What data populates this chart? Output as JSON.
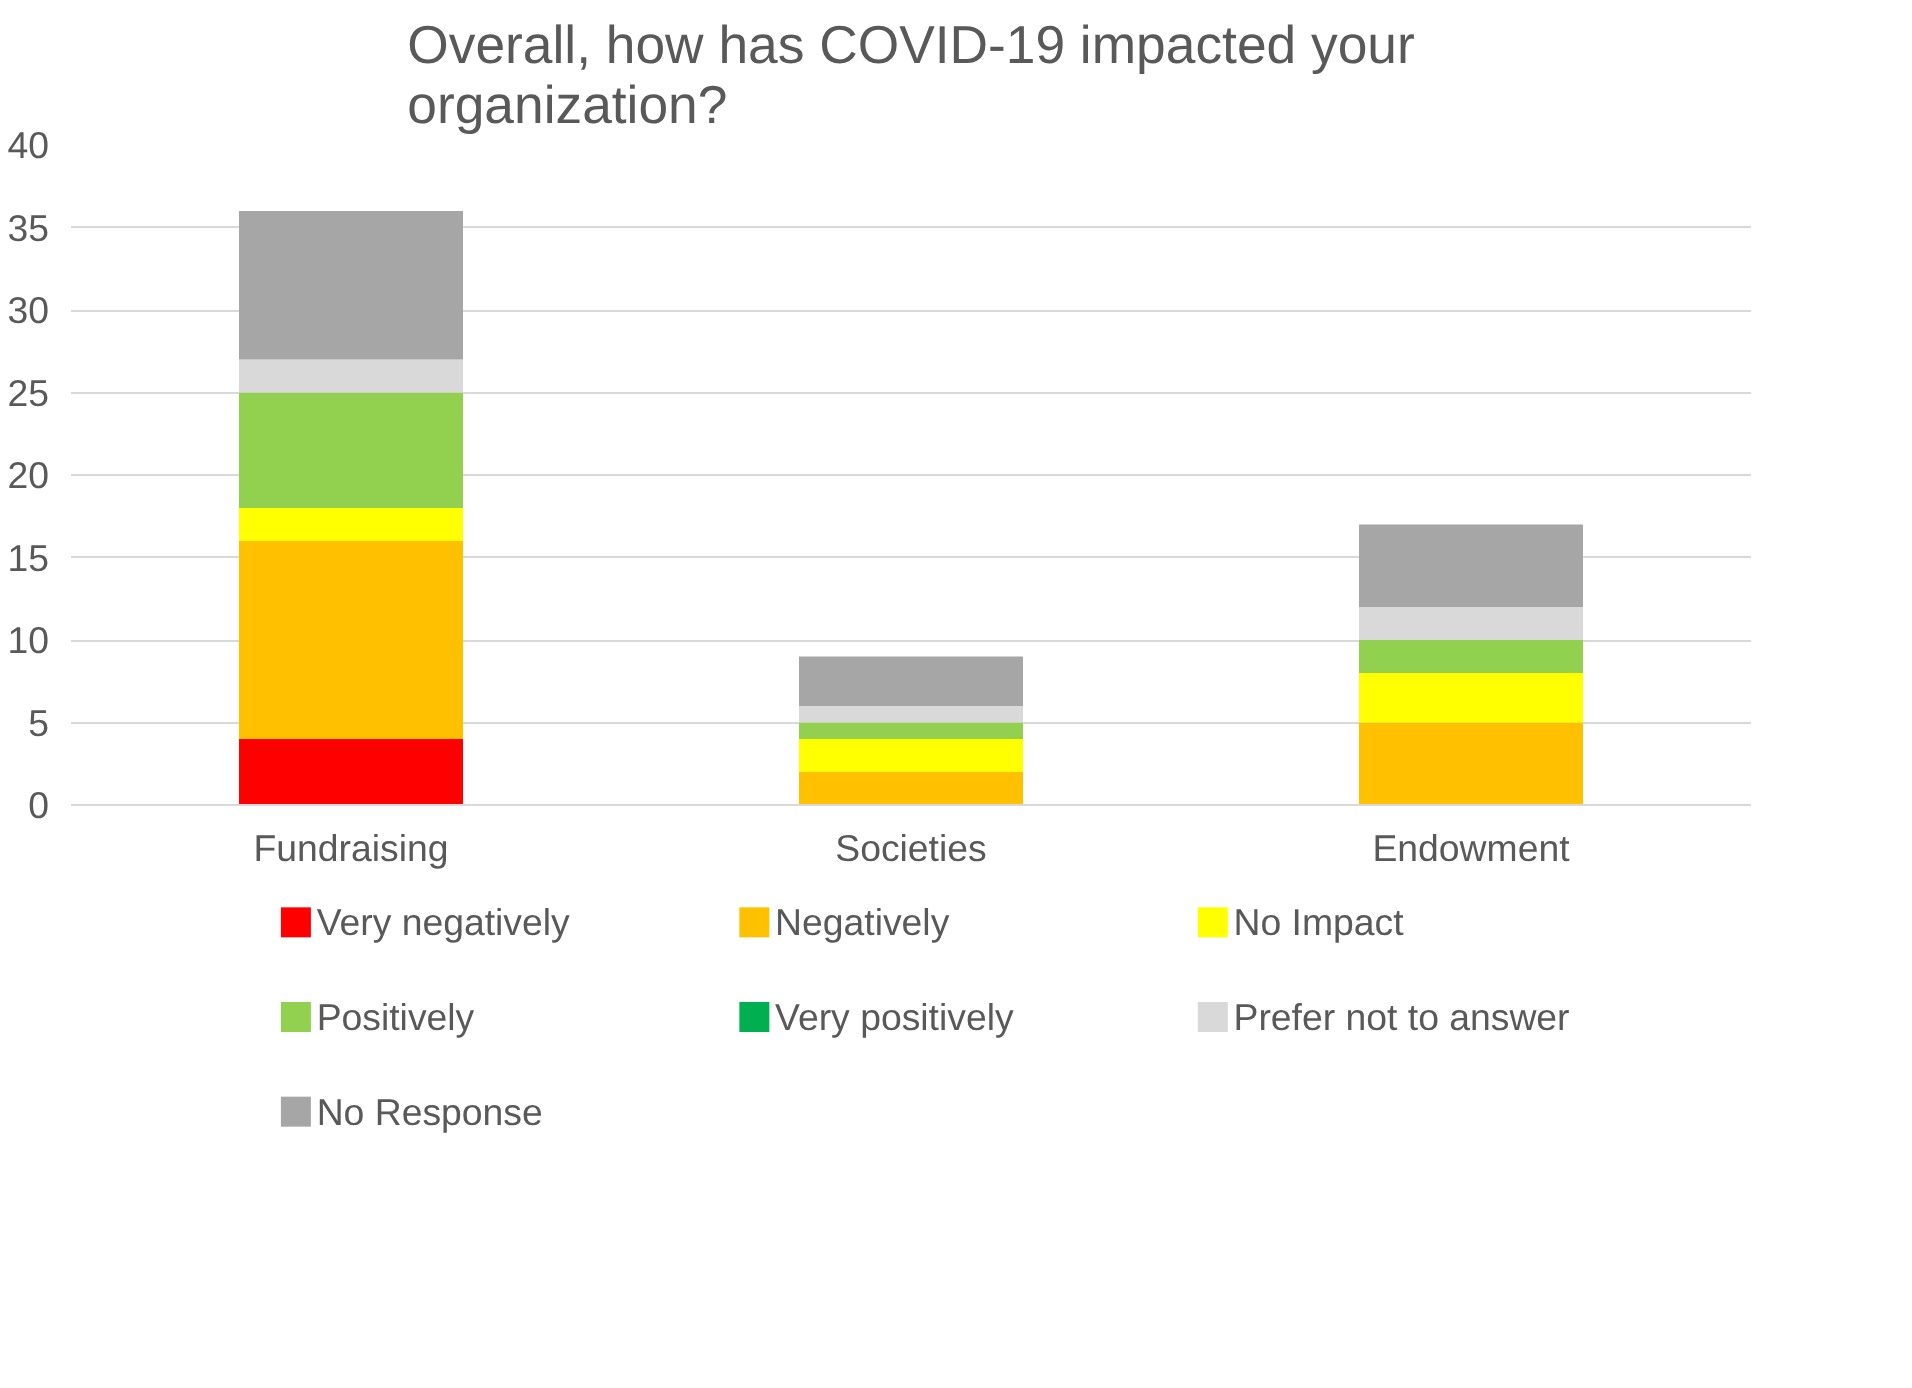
{
  "chart_data": {
    "type": "bar",
    "title": "Overall, how has COVID-19 impacted your organization?",
    "categories": [
      "Fundraising",
      "Societies",
      "Endowment"
    ],
    "stacked": true,
    "series": [
      {
        "name": "Very negatively",
        "color": "#ff0000",
        "values": [
          4,
          0,
          0
        ]
      },
      {
        "name": "Negatively",
        "color": "#ffc000",
        "values": [
          12,
          2,
          5
        ]
      },
      {
        "name": "No Impact",
        "color": "#ffff00",
        "values": [
          2,
          2,
          3
        ]
      },
      {
        "name": "Positively",
        "color": "#92d050",
        "values": [
          7,
          1,
          2
        ]
      },
      {
        "name": "Very positively",
        "color": "#00b050",
        "values": [
          0,
          0,
          0
        ]
      },
      {
        "name": "Prefer not to answer",
        "color": "#d9d9d9",
        "values": [
          2,
          1,
          2
        ]
      },
      {
        "name": "No Response",
        "color": "#a6a6a6",
        "values": [
          9,
          3,
          5
        ]
      }
    ],
    "ylim": [
      0,
      40
    ],
    "yticks": [
      0,
      5,
      10,
      15,
      20,
      25,
      30,
      35,
      40
    ],
    "grid": "y",
    "legend": "bottom"
  }
}
